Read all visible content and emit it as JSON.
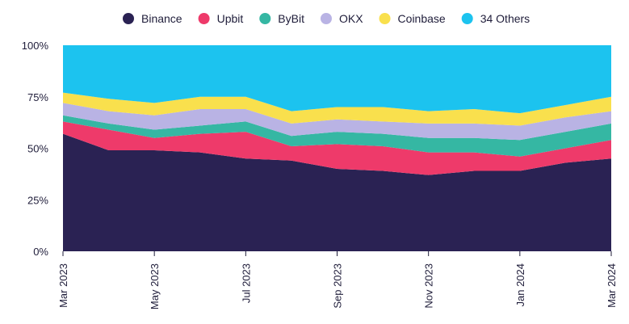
{
  "chart_data": {
    "type": "area",
    "stacked": true,
    "normalized": true,
    "title": "",
    "xlabel": "",
    "ylabel": "",
    "ylim": [
      0,
      100
    ],
    "y_ticks": [
      0,
      25,
      50,
      75,
      100
    ],
    "y_tick_labels": [
      "0%",
      "25%",
      "50%",
      "75%",
      "100%"
    ],
    "legend_position": "top",
    "x": [
      "Mar 2023",
      "Apr 2023",
      "May 2023",
      "Jun 2023",
      "Jul 2023",
      "Aug 2023",
      "Sep 2023",
      "Oct 2023",
      "Nov 2023",
      "Dec 2023",
      "Jan 2024",
      "Feb 2024",
      "Mar 2024"
    ],
    "x_tick_labels": [
      {
        "index": 0,
        "label": "Mar 2023"
      },
      {
        "index": 2,
        "label": "May 2023"
      },
      {
        "index": 4,
        "label": "Jul 2023"
      },
      {
        "index": 6,
        "label": "Sep 2023"
      },
      {
        "index": 8,
        "label": "Nov 2023"
      },
      {
        "index": 10,
        "label": "Jan 2024"
      },
      {
        "index": 12,
        "label": "Mar 2024"
      }
    ],
    "series": [
      {
        "name": "Binance",
        "color": "#2a2253",
        "values": [
          57,
          49,
          49,
          48,
          45,
          44,
          40,
          39,
          37,
          39,
          39,
          43,
          45
        ]
      },
      {
        "name": "Upbit",
        "color": "#ee3a6a",
        "values": [
          6,
          10,
          6,
          9,
          13,
          7,
          12,
          12,
          11,
          9,
          7,
          7,
          9
        ]
      },
      {
        "name": "ByBit",
        "color": "#35b7a3",
        "values": [
          3,
          3,
          4,
          4,
          5,
          5,
          6,
          6,
          7,
          7,
          8,
          8,
          8
        ]
      },
      {
        "name": "OKX",
        "color": "#b9b3e4",
        "values": [
          6,
          6,
          7,
          8,
          6,
          6,
          6,
          6,
          7,
          7,
          7,
          7,
          6
        ]
      },
      {
        "name": "Coinbase",
        "color": "#f9e04d",
        "values": [
          5,
          6,
          6,
          6,
          6,
          6,
          6,
          7,
          6,
          7,
          6,
          6,
          7
        ]
      },
      {
        "name": "34 Others",
        "color": "#1cc3ef",
        "values": [
          23,
          26,
          28,
          25,
          25,
          32,
          30,
          30,
          32,
          31,
          33,
          29,
          25
        ]
      }
    ]
  }
}
